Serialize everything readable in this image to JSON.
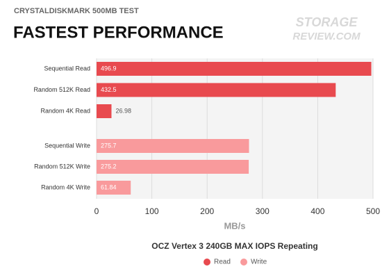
{
  "chart_data": {
    "type": "hbar",
    "subtitle": "CRYSTALDISKMARK 500MB TEST",
    "title": "FASTEST PERFORMANCE",
    "watermark": [
      "STORAGE",
      "REVIEW.COM"
    ],
    "categories": [
      "Sequential Read",
      "Random 512K Read",
      "Random 4K Read",
      "Sequential Write",
      "Random 512K Write",
      "Random 4K Write"
    ],
    "series": [
      {
        "name": "Read",
        "color": "#e84a4f",
        "values": [
          496.9,
          432.5,
          26.98,
          null,
          null,
          null
        ]
      },
      {
        "name": "Write",
        "color": "#f99a9c",
        "values": [
          null,
          null,
          null,
          275.7,
          275.2,
          61.84
        ]
      }
    ],
    "xlim": [
      0,
      500
    ],
    "xticks": [
      0,
      100,
      200,
      300,
      400,
      500
    ],
    "xlabel": "MB/s",
    "legend_title": "OCZ Vertex 3 240GB MAX IOPS Repeating",
    "grid": true
  }
}
